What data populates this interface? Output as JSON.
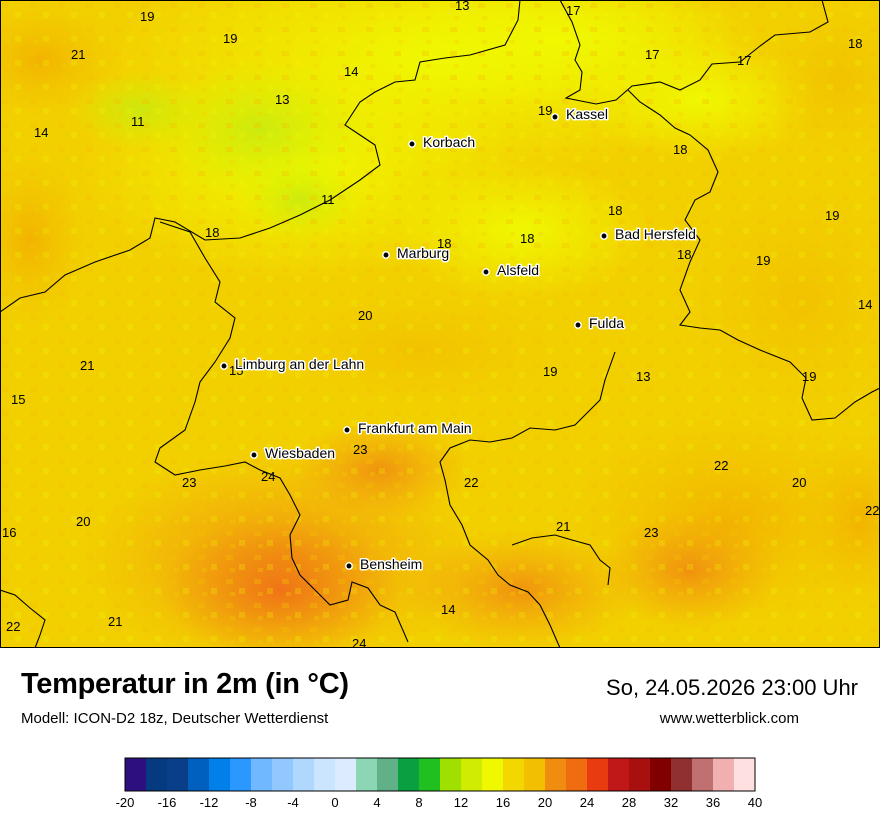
{
  "map": {
    "cities": [
      {
        "name": "Kassel"
      },
      {
        "name": "Korbach"
      },
      {
        "name": "Bad Hersfeld"
      },
      {
        "name": "Marburg"
      },
      {
        "name": "Alsfeld"
      },
      {
        "name": "Fulda"
      },
      {
        "name": "Limburg an der Lahn"
      },
      {
        "name": "Frankfurt am Main"
      },
      {
        "name": "Wiesbaden"
      },
      {
        "name": "Bensheim"
      }
    ],
    "values": [
      "13",
      "17",
      "19",
      "19",
      "21",
      "14",
      "17",
      "18",
      "13",
      "11",
      "14",
      "17",
      "19",
      "18",
      "11",
      "18",
      "18",
      "18",
      "18",
      "19",
      "18",
      "19",
      "14",
      "20",
      "21",
      "15",
      "19",
      "13",
      "19",
      "15",
      "23",
      "22",
      "23",
      "24",
      "22",
      "20",
      "20",
      "16",
      "21",
      "23",
      "22",
      "14",
      "22",
      "21",
      "24"
    ]
  },
  "footer": {
    "title": "Temperatur in 2m (in °C)",
    "subtitle": "Modell: ICON-D2 18z, Deutscher Wetterdienst",
    "datetime": "So, 24.05.2026 23:00 Uhr",
    "website": "www.wetterblick.com"
  },
  "scale": {
    "tick_labels": [
      "-20",
      "-16",
      "-12",
      "-8",
      "-4",
      "0",
      "4",
      "8",
      "12",
      "16",
      "20",
      "24",
      "28",
      "32",
      "36",
      "40"
    ],
    "colors": [
      "#2e0f80",
      "#063a80",
      "#083f88",
      "#0060c0",
      "#0080e8",
      "#2a98ff",
      "#70b8ff",
      "#90c8ff",
      "#b0d8ff",
      "#cce5ff",
      "#dcebff",
      "#8cd6b4",
      "#60b088",
      "#08a040",
      "#20c020",
      "#a0e000",
      "#d0ec00",
      "#f0f800",
      "#f2d800",
      "#f2c000",
      "#f08c10",
      "#f06c10",
      "#e83c10",
      "#c01818",
      "#a81010",
      "#800000",
      "#903030",
      "#c07070",
      "#f0b0b0",
      "#ffe0e0"
    ]
  }
}
